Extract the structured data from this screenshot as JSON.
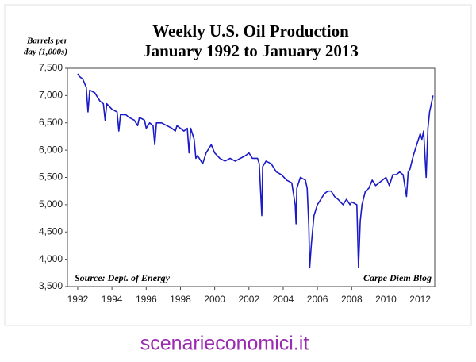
{
  "chart_data": {
    "type": "line",
    "title": [
      "Weekly U.S. Oil Production",
      "January 1992 to January 2013"
    ],
    "ylabel": [
      "Barrels per",
      "day (1,000s)"
    ],
    "annotations": [
      "Source: Dept. of Energy",
      "Carpe Diem Blog"
    ],
    "watermark": "scenarieconomici.it",
    "xlim": [
      1991.4,
      2012.85
    ],
    "xticks": [
      1992,
      1994,
      1996,
      1998,
      2000,
      2002,
      2004,
      2006,
      2008,
      2010,
      2012
    ],
    "ylim": [
      3500,
      7500
    ],
    "yticks": [
      {
        "value": 3500,
        "label": "3,500"
      },
      {
        "value": 4000,
        "label": "4,000"
      },
      {
        "value": 4500,
        "label": "4,500"
      },
      {
        "value": 5000,
        "label": "5,000"
      },
      {
        "value": 5500,
        "label": "5,500"
      },
      {
        "value": 6000,
        "label": "6,000"
      },
      {
        "value": 6500,
        "label": "6,500"
      },
      {
        "value": 7000,
        "label": "7,000"
      },
      {
        "value": 7500,
        "label": "7,500"
      }
    ],
    "grid": false,
    "x": [
      1992.0,
      1992.1,
      1992.3,
      1992.5,
      1992.6,
      1992.7,
      1993.0,
      1993.3,
      1993.5,
      1993.6,
      1993.7,
      1994.0,
      1994.3,
      1994.4,
      1994.5,
      1994.8,
      1995.0,
      1995.3,
      1995.5,
      1995.6,
      1995.9,
      1996.0,
      1996.2,
      1996.4,
      1996.5,
      1996.6,
      1996.9,
      1997.2,
      1997.5,
      1997.7,
      1997.8,
      1998.0,
      1998.2,
      1998.4,
      1998.5,
      1998.6,
      1998.8,
      1998.9,
      1999.0,
      1999.3,
      1999.5,
      1999.8,
      2000.0,
      2000.3,
      2000.6,
      2000.9,
      2001.2,
      2001.5,
      2001.8,
      2002.0,
      2002.2,
      2002.5,
      2002.6,
      2002.75,
      2002.8,
      2003.0,
      2003.3,
      2003.6,
      2003.9,
      2004.2,
      2004.5,
      2004.7,
      2004.75,
      2004.8,
      2005.0,
      2005.3,
      2005.4,
      2005.5,
      2005.55,
      2005.65,
      2005.8,
      2006.0,
      2006.2,
      2006.4,
      2006.6,
      2006.8,
      2007.0,
      2007.2,
      2007.5,
      2007.7,
      2007.9,
      2008.0,
      2008.3,
      2008.4,
      2008.5,
      2008.6,
      2008.8,
      2009.0,
      2009.2,
      2009.4,
      2009.6,
      2009.8,
      2010.0,
      2010.2,
      2010.4,
      2010.6,
      2010.8,
      2011.0,
      2011.2,
      2011.3,
      2011.4,
      2011.6,
      2011.8,
      2012.0,
      2012.1,
      2012.2,
      2012.35,
      2012.45,
      2012.55,
      2012.65,
      2012.75
    ],
    "series": [
      {
        "name": "Weekly U.S. Oil Production",
        "color": "#1a1ac8",
        "values": [
          7400,
          7350,
          7300,
          7150,
          6700,
          7100,
          7050,
          6900,
          6850,
          6550,
          6850,
          6750,
          6700,
          6350,
          6650,
          6650,
          6600,
          6550,
          6450,
          6600,
          6550,
          6400,
          6500,
          6450,
          6100,
          6500,
          6500,
          6450,
          6400,
          6350,
          6450,
          6400,
          6350,
          6400,
          5950,
          6400,
          6200,
          5850,
          5900,
          5750,
          5950,
          6100,
          5950,
          5850,
          5800,
          5850,
          5800,
          5850,
          5900,
          5950,
          5850,
          5850,
          5750,
          4800,
          5700,
          5800,
          5750,
          5600,
          5550,
          5450,
          5400,
          5000,
          4650,
          5300,
          5500,
          5450,
          5300,
          4600,
          3850,
          4300,
          4800,
          5000,
          5100,
          5200,
          5250,
          5250,
          5150,
          5100,
          5000,
          5100,
          5000,
          5050,
          5000,
          3850,
          4700,
          5000,
          5250,
          5300,
          5450,
          5350,
          5400,
          5450,
          5500,
          5350,
          5550,
          5550,
          5600,
          5550,
          5150,
          5600,
          5650,
          5900,
          6100,
          6300,
          6200,
          6350,
          5500,
          6400,
          6700,
          6850,
          7000
        ]
      }
    ]
  }
}
